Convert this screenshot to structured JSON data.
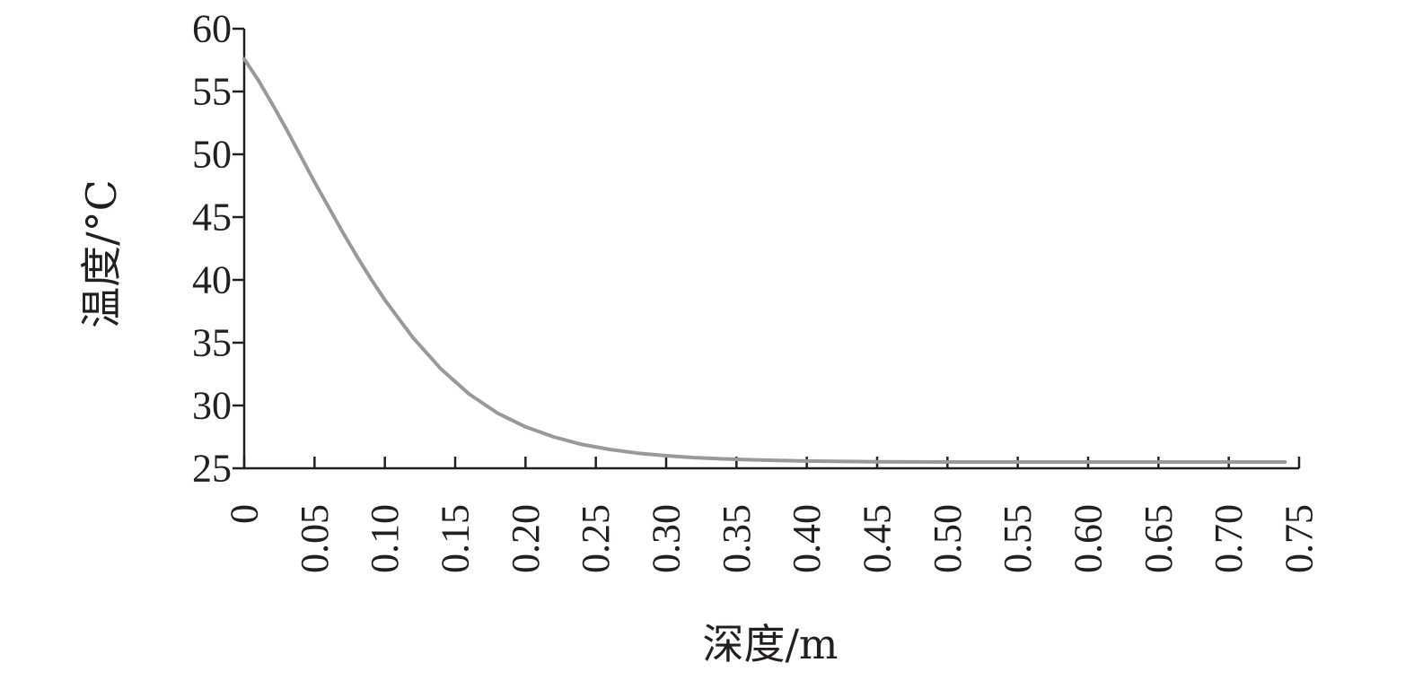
{
  "chart_data": {
    "type": "line",
    "title": "",
    "xlabel": "深度/m",
    "ylabel": "温度/°C",
    "xlim": [
      0,
      0.75
    ],
    "ylim": [
      25,
      60
    ],
    "x_ticks": [
      "0",
      "0.05",
      "0.10",
      "0.15",
      "0.20",
      "0.25",
      "0.30",
      "0.35",
      "0.40",
      "0.45",
      "0.50",
      "0.55",
      "0.60",
      "0.65",
      "0.70",
      "0.75"
    ],
    "y_ticks": [
      "25",
      "30",
      "35",
      "40",
      "45",
      "50",
      "55",
      "60"
    ],
    "grid": false,
    "legend": "none",
    "series": [
      {
        "color": "#999999",
        "x": [
          0,
          0.01,
          0.02,
          0.03,
          0.04,
          0.05,
          0.06,
          0.07,
          0.08,
          0.09,
          0.1,
          0.12,
          0.14,
          0.16,
          0.18,
          0.2,
          0.22,
          0.24,
          0.26,
          0.28,
          0.3,
          0.32,
          0.34,
          0.36,
          0.38,
          0.4,
          0.42,
          0.45,
          0.5,
          0.55,
          0.6,
          0.65,
          0.7,
          0.74
        ],
        "y": [
          57.6,
          55.9,
          54.0,
          52.0,
          49.9,
          47.8,
          45.8,
          43.8,
          41.9,
          40.1,
          38.4,
          35.4,
          32.9,
          30.9,
          29.4,
          28.3,
          27.5,
          26.9,
          26.5,
          26.2,
          26.0,
          25.85,
          25.75,
          25.68,
          25.62,
          25.58,
          25.55,
          25.52,
          25.5,
          25.5,
          25.5,
          25.5,
          25.5,
          25.5
        ]
      }
    ]
  }
}
